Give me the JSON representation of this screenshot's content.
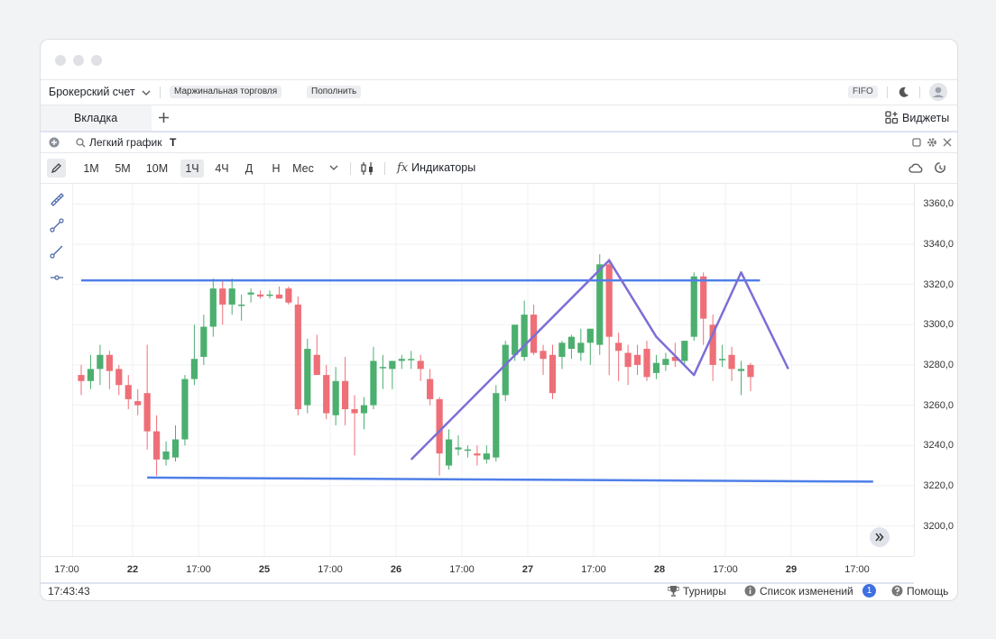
{
  "topbar": {
    "account_label": "Брокерский счет",
    "margin_chip": "Маржинальная торговля",
    "deposit_chip": "Пополнить",
    "fifo_badge": "FIFO"
  },
  "tabs": {
    "tab1_label": "Вкладка",
    "widgets_label": "Виджеты"
  },
  "widget": {
    "title": "Легкий график",
    "ticker": "T"
  },
  "toolbar": {
    "timeframes": [
      "1M",
      "5M",
      "10M",
      "1Ч",
      "4Ч",
      "Д",
      "Н",
      "Мес"
    ],
    "active_timeframe": "1Ч",
    "indicators_label": "Индикаторы"
  },
  "statusbar": {
    "time": "17:43:43",
    "tournaments": "Турниры",
    "changelog": "Список изменений",
    "changelog_count": "1",
    "help": "Помощь"
  },
  "colors": {
    "up": "#4caf6f",
    "down": "#ee6f77",
    "trendline": "#4f7fe8",
    "pattern": "#7b6fd6"
  },
  "chart_data": {
    "type": "candlestick",
    "ylim": [
      3185,
      3370
    ],
    "y_ticks": [
      "3360,0",
      "3340,0",
      "3320,0",
      "3300,0",
      "3280,0",
      "3260,0",
      "3240,0",
      "3220,0",
      "3200,0"
    ],
    "x_ticks": [
      {
        "label": "17:00",
        "bold": false
      },
      {
        "label": "22",
        "bold": true
      },
      {
        "label": "17:00",
        "bold": false
      },
      {
        "label": "25",
        "bold": true
      },
      {
        "label": "17:00",
        "bold": false
      },
      {
        "label": "26",
        "bold": true
      },
      {
        "label": "17:00",
        "bold": false
      },
      {
        "label": "27",
        "bold": true
      },
      {
        "label": "17:00",
        "bold": false
      },
      {
        "label": "28",
        "bold": true
      },
      {
        "label": "17:00",
        "bold": false
      },
      {
        "label": "29",
        "bold": true
      },
      {
        "label": "17:00",
        "bold": false
      }
    ],
    "candles": [
      [
        3275,
        3280,
        3265,
        3272
      ],
      [
        3272,
        3285,
        3268,
        3278
      ],
      [
        3278,
        3290,
        3270,
        3285
      ],
      [
        3285,
        3287,
        3268,
        3277
      ],
      [
        3278,
        3280,
        3265,
        3270
      ],
      [
        3270,
        3275,
        3258,
        3263
      ],
      [
        3262,
        3268,
        3255,
        3260
      ],
      [
        3266,
        3290,
        3238,
        3247
      ],
      [
        3247,
        3255,
        3225,
        3233
      ],
      [
        3233,
        3242,
        3230,
        3237
      ],
      [
        3234,
        3250,
        3232,
        3243
      ],
      [
        3243,
        3275,
        3240,
        3273
      ],
      [
        3273,
        3300,
        3270,
        3283
      ],
      [
        3284,
        3305,
        3280,
        3299
      ],
      [
        3299,
        3323,
        3294,
        3318
      ],
      [
        3318,
        3322,
        3300,
        3310
      ],
      [
        3310,
        3323,
        3305,
        3318
      ],
      [
        3310,
        3315,
        3302,
        3310
      ],
      [
        3315,
        3318,
        3311,
        3316
      ],
      [
        3315,
        3317,
        3313,
        3314
      ],
      [
        3315,
        3317,
        3313,
        3315
      ],
      [
        3315,
        3319,
        3313,
        3313
      ],
      [
        3318,
        3319,
        3310,
        3311
      ],
      [
        3310,
        3314,
        3255,
        3258
      ],
      [
        3260,
        3293,
        3256,
        3288
      ],
      [
        3285,
        3295,
        3275,
        3275
      ],
      [
        3275,
        3280,
        3253,
        3256
      ],
      [
        3255,
        3279,
        3250,
        3272
      ],
      [
        3272,
        3284,
        3250,
        3258
      ],
      [
        3258,
        3265,
        3235,
        3256
      ],
      [
        3256,
        3264,
        3248,
        3260
      ],
      [
        3260,
        3289,
        3258,
        3282
      ],
      [
        3279,
        3285,
        3268,
        3279
      ],
      [
        3278,
        3282,
        3268,
        3282
      ],
      [
        3282,
        3285,
        3278,
        3283
      ],
      [
        3283,
        3287,
        3278,
        3283
      ],
      [
        3282,
        3285,
        3272,
        3278
      ],
      [
        3273,
        3278,
        3260,
        3263
      ],
      [
        3263,
        3264,
        3225,
        3236
      ],
      [
        3230,
        3248,
        3228,
        3243
      ],
      [
        3238,
        3245,
        3235,
        3239
      ],
      [
        3238,
        3240,
        3234,
        3238
      ],
      [
        3236,
        3240,
        3230,
        3235
      ],
      [
        3233,
        3240,
        3231,
        3236
      ],
      [
        3234,
        3270,
        3232,
        3266
      ],
      [
        3265,
        3292,
        3262,
        3290
      ],
      [
        3285,
        3300,
        3282,
        3300
      ],
      [
        3284,
        3312,
        3282,
        3305
      ],
      [
        3305,
        3310,
        3285,
        3286
      ],
      [
        3287,
        3290,
        3275,
        3283
      ],
      [
        3285,
        3290,
        3263,
        3266
      ],
      [
        3284,
        3292,
        3278,
        3291
      ],
      [
        3288,
        3295,
        3283,
        3294
      ],
      [
        3286,
        3298,
        3282,
        3291
      ],
      [
        3291,
        3298,
        3280,
        3298
      ],
      [
        3290,
        3335,
        3285,
        3330
      ],
      [
        3330,
        3333,
        3275,
        3294
      ],
      [
        3291,
        3296,
        3272,
        3287
      ],
      [
        3286,
        3290,
        3270,
        3279
      ],
      [
        3285,
        3290,
        3275,
        3280
      ],
      [
        3288,
        3292,
        3272,
        3274
      ],
      [
        3276,
        3285,
        3273,
        3281
      ],
      [
        3280,
        3286,
        3277,
        3283
      ],
      [
        3284,
        3291,
        3279,
        3282
      ],
      [
        3282,
        3292,
        3280,
        3292
      ],
      [
        3294,
        3326,
        3292,
        3324
      ],
      [
        3324,
        3326,
        3290,
        3303
      ],
      [
        3300,
        3305,
        3272,
        3280
      ],
      [
        3283,
        3290,
        3279,
        3283
      ],
      [
        3285,
        3289,
        3272,
        3278
      ],
      [
        3277,
        3282,
        3265,
        3278
      ],
      [
        3280,
        3281,
        3267,
        3274
      ]
    ],
    "trendlines": [
      {
        "name": "resistance",
        "from": [
          0,
          3322
        ],
        "to": [
          72,
          3322
        ]
      },
      {
        "name": "support",
        "from": [
          7,
          3224
        ],
        "to": [
          84,
          3222
        ]
      }
    ],
    "pattern": [
      [
        35,
        3233
      ],
      [
        56,
        3332
      ],
      [
        61,
        3294
      ],
      [
        65,
        3275
      ],
      [
        70,
        3326
      ],
      [
        75,
        3278
      ]
    ]
  }
}
